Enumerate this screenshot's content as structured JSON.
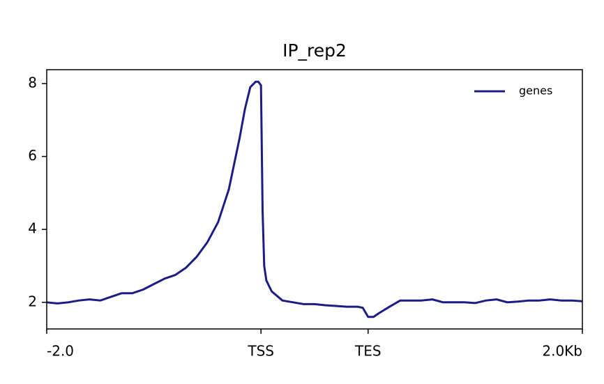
{
  "chart_data": {
    "type": "line",
    "title": "IP_rep2",
    "x": [
      0,
      2,
      4,
      6,
      8,
      10,
      12,
      14,
      16,
      18,
      20,
      22,
      24,
      26,
      28,
      30,
      32,
      34,
      36,
      37,
      38,
      39,
      39.5,
      40,
      40.3,
      40.6,
      41,
      42,
      44,
      46,
      48,
      50,
      52,
      54,
      56,
      58,
      59,
      60,
      61,
      62,
      64,
      66,
      68,
      70,
      72,
      74,
      76,
      78,
      80,
      82,
      84,
      86,
      88,
      90,
      92,
      94,
      96,
      98,
      100
    ],
    "series": [
      {
        "name": "genes",
        "color": "#1c1c87",
        "values": [
          2.0,
          1.97,
          2.0,
          2.05,
          2.08,
          2.05,
          2.15,
          2.25,
          2.25,
          2.35,
          2.5,
          2.65,
          2.75,
          2.95,
          3.25,
          3.65,
          4.2,
          5.1,
          6.5,
          7.3,
          7.9,
          8.05,
          8.05,
          7.95,
          4.5,
          3.0,
          2.6,
          2.3,
          2.05,
          2.0,
          1.95,
          1.95,
          1.92,
          1.9,
          1.88,
          1.88,
          1.85,
          1.6,
          1.6,
          1.7,
          1.88,
          2.05,
          2.05,
          2.05,
          2.08,
          2.0,
          2.0,
          2.0,
          1.98,
          2.05,
          2.08,
          2.0,
          2.02,
          2.05,
          2.05,
          2.08,
          2.05,
          2.05,
          2.03
        ]
      }
    ],
    "xlim": [
      0,
      100
    ],
    "xticks": [
      {
        "value": 0,
        "label": "-2.0"
      },
      {
        "value": 40,
        "label": "TSS"
      },
      {
        "value": 60,
        "label": "TES"
      },
      {
        "value": 100,
        "label": "2.0Kb"
      }
    ],
    "ylim": [
      1.27,
      8.38
    ],
    "yticks": [
      2,
      4,
      6,
      8
    ],
    "legend": "upper right"
  }
}
